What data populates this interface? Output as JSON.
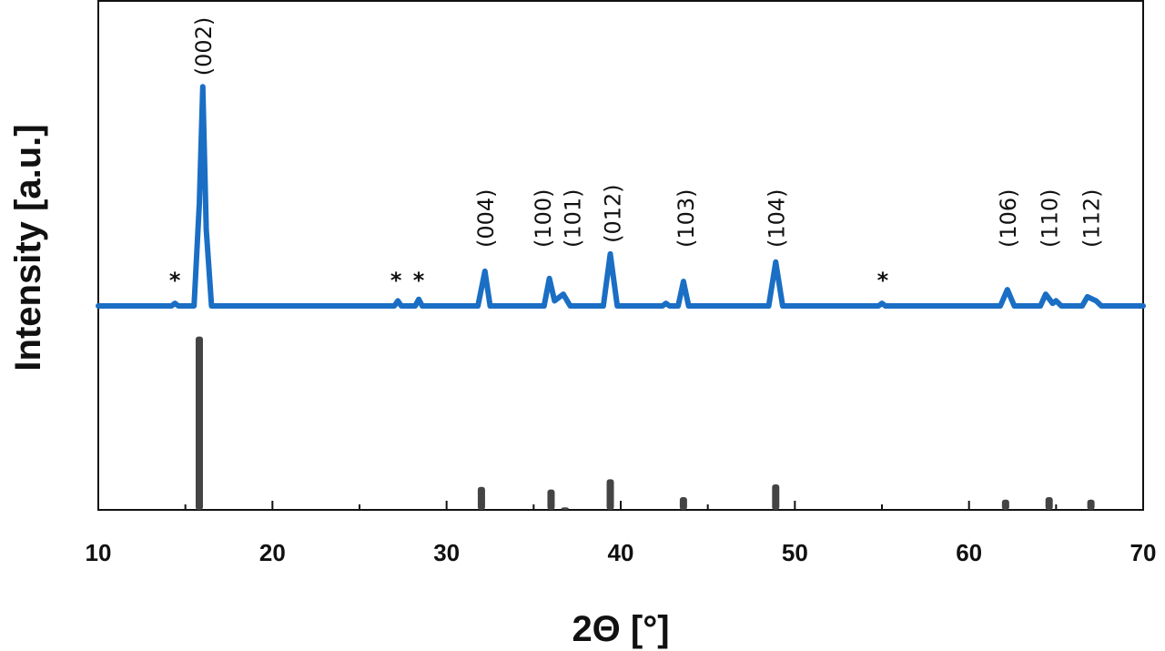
{
  "chart_data": {
    "type": "line",
    "xlabel": "2Θ [°]",
    "ylabel": "Intensity [a.u.]",
    "xlim": [
      10,
      70
    ],
    "ylim": [
      0,
      100
    ],
    "xticks": [
      10,
      20,
      30,
      40,
      50,
      60,
      70
    ],
    "xminorticks": [
      15,
      25,
      35,
      45,
      55,
      65
    ],
    "series": [
      {
        "type": "line",
        "color": "#1a6ec4",
        "x": [
          10,
          14.2,
          14.4,
          14.6,
          15.5,
          15.8,
          16.0,
          16.2,
          16.5,
          27.0,
          27.2,
          27.4,
          28.2,
          28.4,
          28.6,
          31.8,
          32.2,
          32.5,
          35.6,
          35.9,
          36.2,
          36.7,
          37.1,
          39.0,
          39.4,
          39.8,
          42.4,
          42.6,
          42.8,
          43.3,
          43.6,
          43.9,
          48.5,
          48.9,
          49.3,
          54.8,
          55.0,
          55.2,
          61.8,
          62.2,
          62.6,
          64.1,
          64.4,
          64.8,
          65.0,
          65.3,
          66.5,
          66.8,
          67.3,
          67.6,
          70
        ],
        "values": [
          40,
          40,
          40.5,
          40,
          40,
          60,
          83,
          55,
          40,
          40,
          41,
          40,
          40,
          41.3,
          40,
          40,
          46.8,
          40,
          40,
          45.4,
          41,
          42.3,
          40,
          40,
          50.2,
          40,
          40,
          40.5,
          40,
          40,
          44.8,
          40,
          40,
          48.6,
          40,
          40,
          40.5,
          40,
          40,
          43.2,
          40,
          40,
          42.3,
          40.5,
          41,
          40,
          40,
          41.8,
          41,
          40,
          40
        ]
      },
      {
        "type": "stick",
        "color": "#444444",
        "x": [
          15.8,
          32.0,
          36.0,
          36.8,
          39.4,
          43.6,
          48.9,
          62.1,
          64.6,
          67.0
        ],
        "values": [
          34,
          4.5,
          4,
          0.5,
          6,
          2.5,
          5,
          2,
          2.5,
          2
        ]
      }
    ],
    "annotations": [
      {
        "text": "(002)",
        "x": 16.0
      },
      {
        "text": "(004)",
        "x": 32.2
      },
      {
        "text": "(100)",
        "x": 35.5
      },
      {
        "text": "(101)",
        "x": 37.2
      },
      {
        "text": "(012)",
        "x": 39.5
      },
      {
        "text": "(103)",
        "x": 43.7
      },
      {
        "text": "(104)",
        "x": 48.9
      },
      {
        "text": "(106)",
        "x": 62.2
      },
      {
        "text": "(110)",
        "x": 64.6
      },
      {
        "text": "(112)",
        "x": 67.0
      },
      {
        "text": "*",
        "x": 14.4
      },
      {
        "text": "*",
        "x": 27.1
      },
      {
        "text": "*",
        "x": 28.4
      },
      {
        "text": "*",
        "x": 55.05
      }
    ]
  }
}
